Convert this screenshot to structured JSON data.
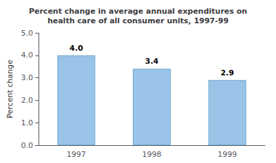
{
  "chart_data": {
    "type": "bar",
    "title": "Percent change in average annual expenditures on\nhealth care of all consumer units, 1997-99",
    "ylabel": "Percent change",
    "categories": [
      "1997",
      "1998",
      "1999"
    ],
    "values": [
      4.0,
      3.4,
      2.9
    ],
    "value_labels": [
      "4.0",
      "3.4",
      "2.9"
    ],
    "data_labels": true,
    "color": "#99c4e8",
    "ylim": [
      0.0,
      5.0
    ],
    "yticks": [
      {
        "value": 0.0,
        "label": "0.0"
      },
      {
        "value": 1.0,
        "label": "1.0"
      },
      {
        "value": 2.0,
        "label": "2.0"
      },
      {
        "value": 3.0,
        "label": "3.0"
      },
      {
        "value": 4.0,
        "label": "4.0"
      },
      {
        "value": 5.0,
        "label": "5.0"
      }
    ],
    "grid": false
  }
}
